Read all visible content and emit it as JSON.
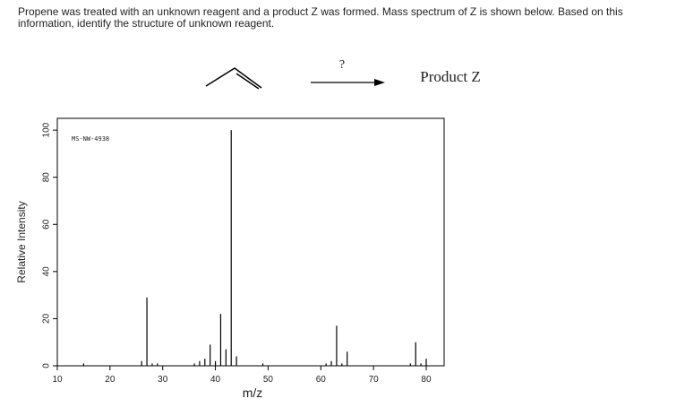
{
  "question": "Propene was treated with an unknown reagent and a product Z was formed. Mass spectrum of Z is shown below. Based on this information, identify the structure of unknown reagent.",
  "reaction": {
    "reagent": "?",
    "product": "Product Z"
  },
  "chart_data": {
    "type": "stem",
    "annotation": "MS-NW-4938",
    "x_label": "m/z",
    "y_label": "Relative Intensity",
    "x": [
      15,
      26,
      27,
      28,
      29,
      36,
      37,
      38,
      39,
      40,
      41,
      42,
      43,
      44,
      49,
      61,
      62,
      63,
      64,
      65,
      77,
      78,
      79,
      80
    ],
    "values": [
      1,
      2,
      29,
      1,
      1,
      1,
      2,
      3,
      9,
      2,
      22,
      7,
      100,
      4,
      1,
      1,
      2,
      17,
      1,
      6,
      1,
      10,
      1,
      3
    ],
    "color": "#000000",
    "xlim": [
      10,
      83.4
    ],
    "ylim": [
      0,
      105
    ],
    "xticks": [
      10,
      20,
      30,
      40,
      50,
      60,
      70,
      80
    ],
    "yticks": [
      0,
      20,
      40,
      60,
      80,
      100
    ]
  }
}
